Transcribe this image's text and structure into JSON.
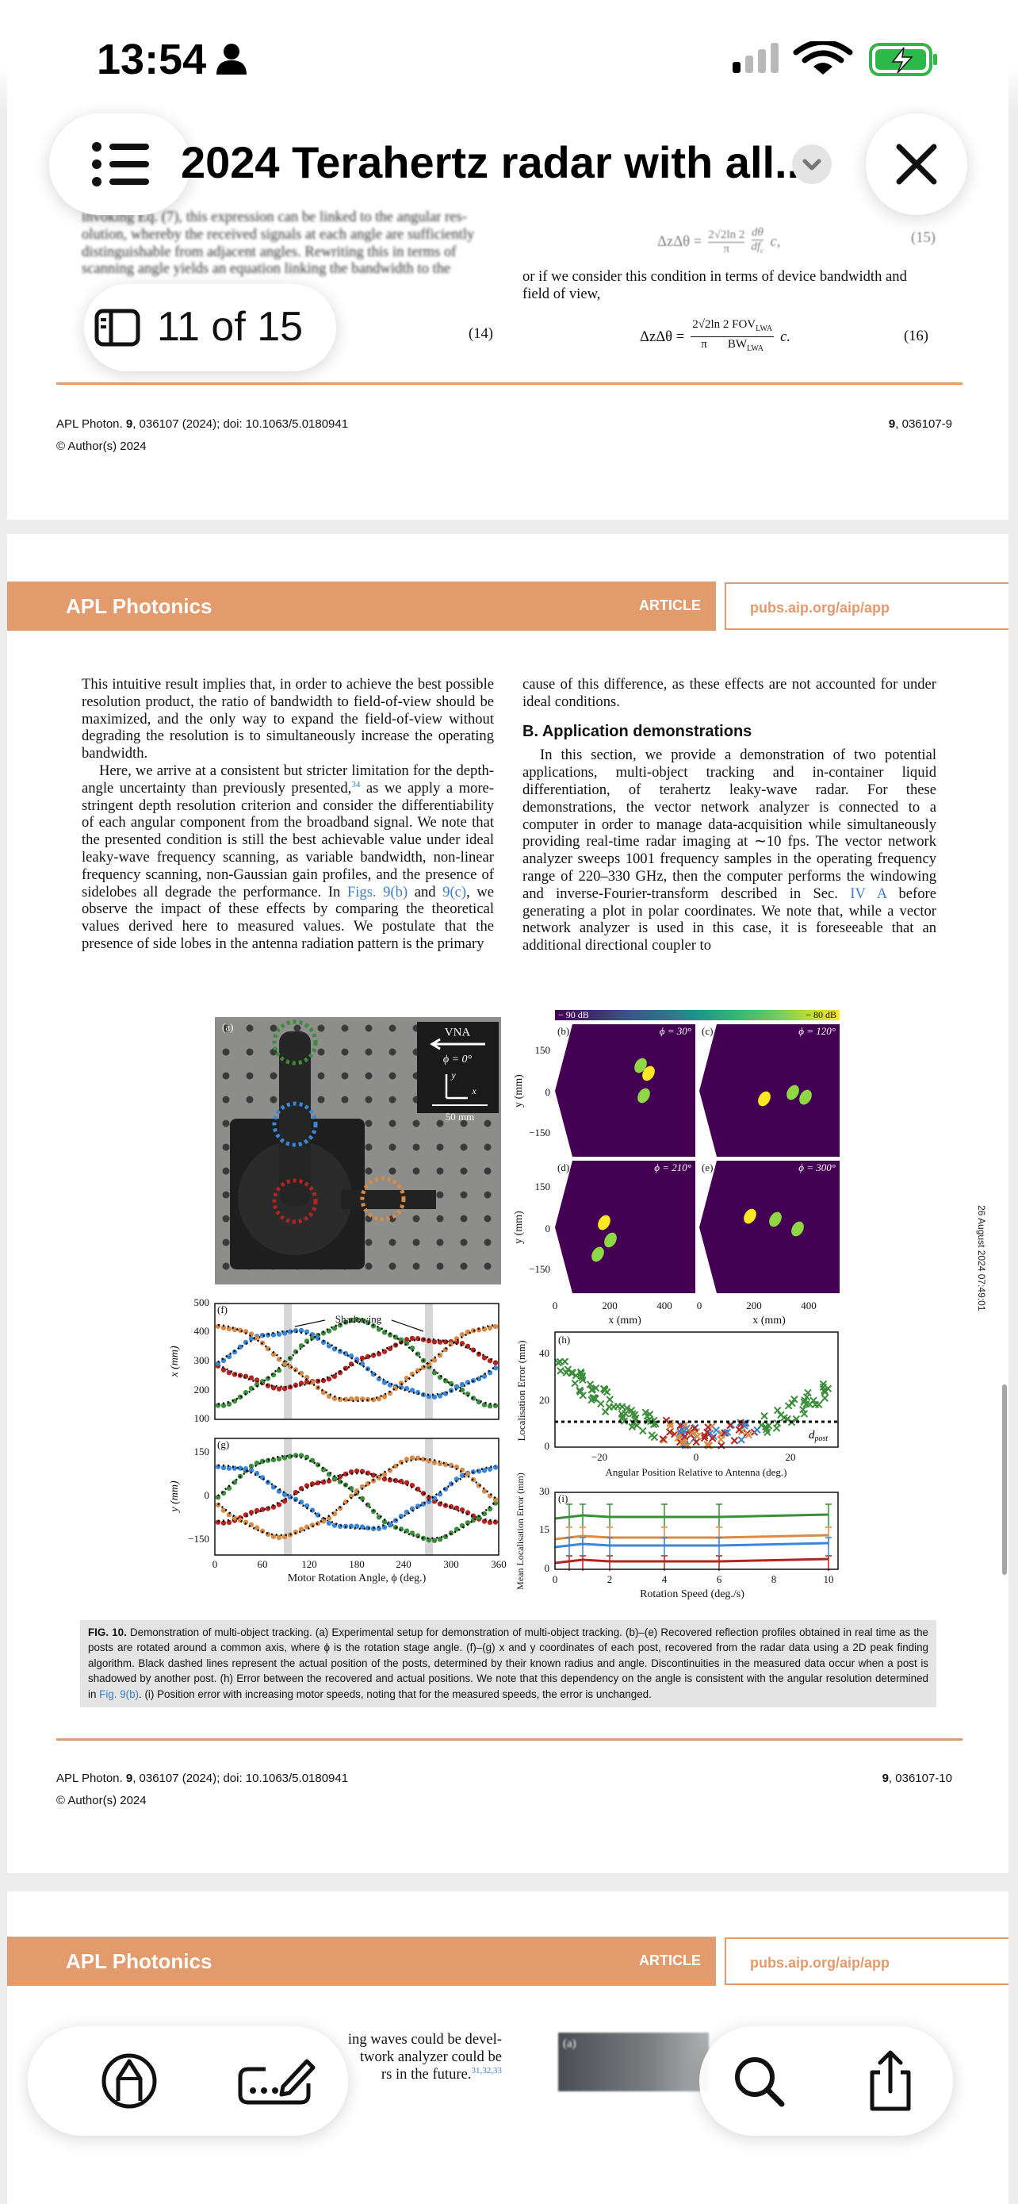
{
  "status_bar": {
    "time": "13:54"
  },
  "toolbar": {
    "title": "2024 Terahertz radar with all..."
  },
  "page_indicator": "11 of 15",
  "page_top": {
    "left_lines": [
      "invoking Eq. (7), this expression can be linked to the angular res-",
      "olution, whereby the received signals at each angle are sufficiently",
      "distinguishable from adjacent angles. Rewriting this in terms of",
      "scanning angle yields an equation linking the bandwidth to the"
    ],
    "eq14_number": "(14)",
    "eq15": {
      "lhs": "ΔzΔθ =",
      "num": "2√2ln 2",
      "den": "π",
      "num2": "dθ",
      "den2": "df",
      "den2_sub": "c",
      "tail": "c,",
      "number": "(15)"
    },
    "right_lines": [
      "or if we consider this condition in terms of device bandwidth and",
      "field of view,"
    ],
    "eq16": {
      "lhs": "ΔzΔθ =",
      "num": "2√2ln 2 FOV",
      "num_sub": "LWA",
      "den": "π",
      "den2": "BW",
      "den2_sub": "LWA",
      "tail": "c.",
      "number": "(16)"
    },
    "footer": {
      "journal": "APL Photon. ",
      "volume": "9",
      "rest": ", 036107 (2024); doi: 10.1063/5.0180941",
      "copyright": "© Author(s) 2024",
      "page_volume": "9",
      "page_number": ", 036107-9"
    }
  },
  "page_main": {
    "header": {
      "journal": "APL Photonics",
      "label": "ARTICLE",
      "url": "pubs.aip.org/aip/app"
    },
    "left_col": {
      "p1": "This intuitive result implies that, in order to achieve the best possible resolution product, the ratio of bandwidth to field-of-view should be maximized, and the only way to expand the field-of-view without degrading the resolution is to simultaneously increase the operating bandwidth.",
      "p2": [
        "Here, we arrive at a consistent but stricter limitation for the depth-angle uncertainty than previously presented,",
        "34",
        " as we apply a more-stringent depth resolution criterion and consider the differentiability of each angular component from the broadband signal. We note that the presented condition is still the best achievable value under ideal leaky-wave frequency scanning, as variable bandwidth, non-linear frequency scanning, non-Gaussian gain profiles, and the presence of sidelobes all degrade the performance. In ",
        "Figs. 9(b)",
        " and ",
        "9(c)",
        ", we observe the impact of these effects by comparing the theoretical values derived here to measured values. We postulate that the presence of side lobes in the antenna radiation pattern is the primary"
      ]
    },
    "right_col": {
      "p1": "cause of this difference, as these effects are not accounted for under ideal conditions.",
      "heading": "B. Application demonstrations",
      "p2": [
        "In this section, we provide a demonstration of two potential applications, multi-object tracking and in-container liquid differentiation, of terahertz leaky-wave radar. For these demonstrations, the vector network analyzer is connected to a computer in order to manage data-acquisition while simultaneously providing real-time radar imaging at ∼10 fps. The vector network analyzer sweeps 1001 frequency samples in the operating frequency range of 220–330 GHz, then the computer performs the windowing and inverse-Fourier-transform described in Sec. ",
        "IV A",
        " before generating a plot in polar coordinates. We note that, while a vector network analyzer is used in this case, it is foreseeable that an additional directional coupler to"
      ]
    },
    "figure": {
      "panel_a": {
        "label": "(a)",
        "vna": "VNA",
        "phi": "ϕ = 0°",
        "axis_y": "y",
        "axis_x": "x",
        "scale": "50 mm"
      },
      "colorbar": {
        "min": "− 90 dB",
        "max": "− 80 dB"
      },
      "maps": [
        {
          "label": "(b)",
          "phi": "ϕ = 30°"
        },
        {
          "label": "(c)",
          "phi": "ϕ = 120°"
        },
        {
          "label": "(d)",
          "phi": "ϕ = 210°"
        },
        {
          "label": "(e)",
          "phi": "ϕ = 300°"
        }
      ],
      "maps_yticks": [
        "150",
        "0",
        "−150"
      ],
      "maps_xticks": [
        "0",
        "200",
        "400"
      ],
      "maps_ylabel": "y (mm)",
      "maps_xlabel": "x (mm)",
      "panel_f": {
        "label": "(f)",
        "annotation": "Shadowing",
        "yticks": [
          "500",
          "400",
          "300",
          "200",
          "100"
        ],
        "ylabel": "x (mm)"
      },
      "panel_g": {
        "label": "(g)",
        "yticks": [
          "150",
          "0",
          "−150"
        ],
        "ylabel": "y (mm)",
        "xticks": [
          "0",
          "60",
          "120",
          "180",
          "240",
          "300",
          "360"
        ],
        "xlabel": "Motor Rotation Angle, ϕ (deg.)"
      },
      "panel_h": {
        "label": "(h)",
        "yticks": [
          "40",
          "20",
          "0"
        ],
        "ylabel": "Localisation Error (mm)",
        "xticks": [
          "−20",
          "0",
          "20"
        ],
        "xlabel": "Angular Position Relative to Antenna (deg.)",
        "annotation": "d",
        "annotation_sub": "post"
      },
      "panel_i": {
        "label": "(i)",
        "yticks": [
          "30",
          "15",
          "0"
        ],
        "ylabel": "Mean Localisation Error (mm)",
        "xticks": [
          "0",
          "2",
          "4",
          "6",
          "8",
          "10"
        ],
        "xlabel": "Rotation Speed (deg./s)"
      }
    },
    "caption": [
      "FIG. 10.",
      " Demonstration of multi-object tracking. (a) Experimental setup for demonstration of multi-object tracking. (b)–(e) Recovered reflection profiles obtained in real time as the posts are rotated around a common axis, where ϕ is the rotation stage angle. (f)–(g) x and y coordinates of each post, recovered from the radar data using a 2D peak finding algorithm. Black dashed lines represent the actual position of the posts, determined by their known radius and angle. Discontinuities in the measured data occur when a post is shadowed by another post. (h) Error between the recovered and actual positions. We note that this dependency on the angle is consistent with the angular resolution determined in ",
      "Fig. 9(b)",
      ". (i) Position error with increasing motor speeds, noting that for the measured speeds, the error is unchanged."
    ],
    "footer": {
      "journal": "APL Photon. ",
      "volume": "9",
      "rest": ", 036107 (2024); doi: 10.1063/5.0180941",
      "copyright": "© Author(s) 2024",
      "page_volume": "9",
      "page_number": ", 036107-10"
    },
    "download_stamp": "26 August 2024 07:49:01"
  },
  "page_next": {
    "header": {
      "journal": "APL Photonics",
      "label": "ARTICLE",
      "url": "pubs.aip.org/aip/app"
    },
    "lines": [
      "ing waves could be devel-",
      "twork analyzer could be",
      "rs in the future."
    ],
    "superscript": "31,32,33",
    "figure_label": "(a)"
  }
}
